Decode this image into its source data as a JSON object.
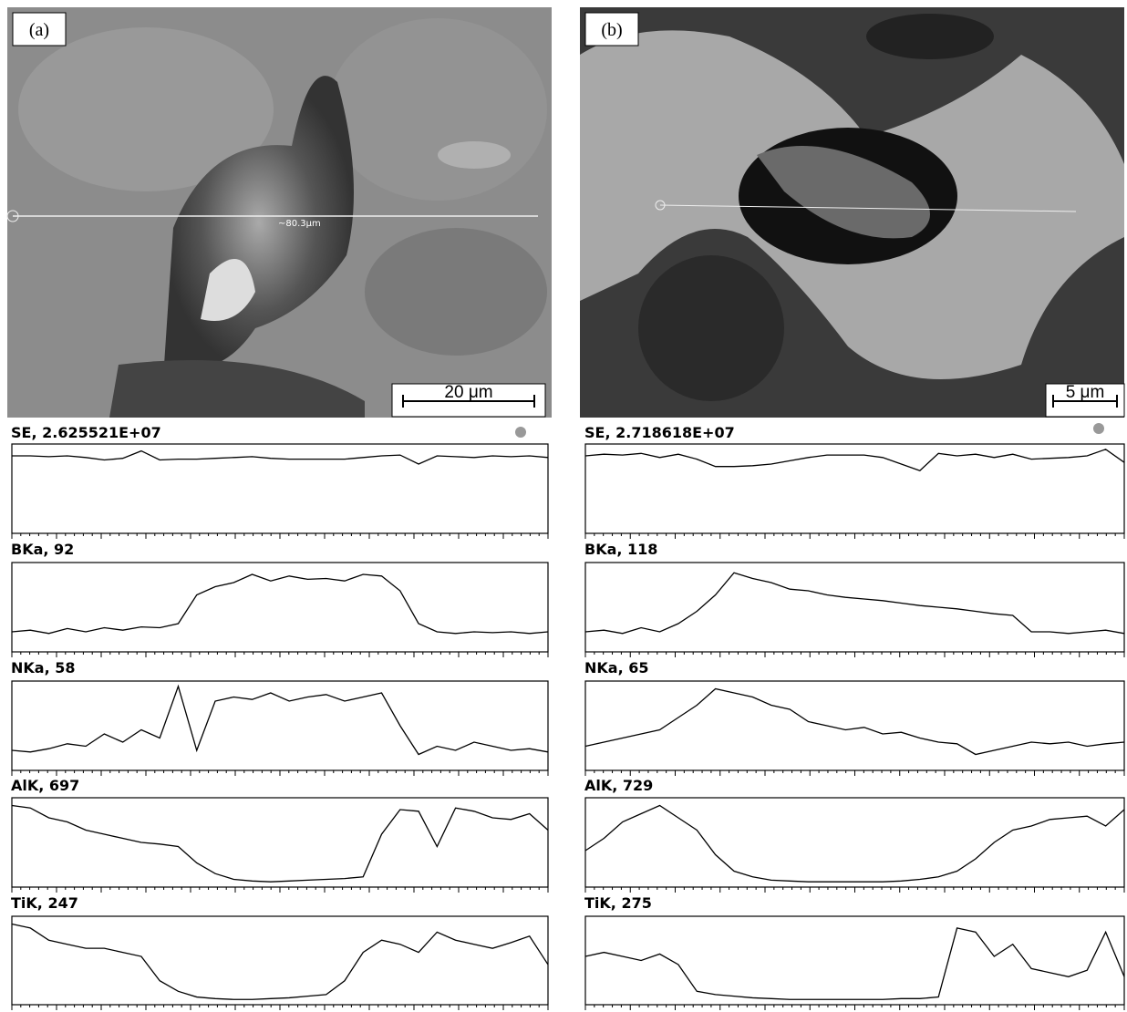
{
  "panels": [
    {
      "label": "(a)",
      "scale_bar": "20 μm",
      "scan_label": "~80.3μm"
    },
    {
      "label": "(b)",
      "scale_bar": "5 μm"
    }
  ],
  "chart_data": [
    {
      "type": "line",
      "title": "SE, 2.625521E+07",
      "color": "#000000",
      "ylim": [
        0,
        100
      ],
      "values": [
        90,
        90,
        89,
        90,
        88,
        85,
        87,
        96,
        85,
        86,
        86,
        87,
        88,
        89,
        87,
        86,
        86,
        86,
        86,
        88,
        90,
        91,
        80,
        90,
        89,
        88,
        90,
        89,
        90,
        88
      ]
    },
    {
      "type": "line",
      "title": "BKa, 92",
      "color": "#000000",
      "ylim": [
        0,
        100
      ],
      "values": [
        20,
        22,
        18,
        24,
        20,
        25,
        22,
        26,
        25,
        30,
        65,
        75,
        80,
        90,
        82,
        88,
        84,
        85,
        82,
        90,
        88,
        70,
        30,
        20,
        18,
        20,
        19,
        20,
        18,
        20
      ]
    },
    {
      "type": "line",
      "title": "NKa, 58",
      "color": "#000000",
      "ylim": [
        0,
        100
      ],
      "values": [
        20,
        18,
        22,
        28,
        25,
        40,
        30,
        45,
        35,
        98,
        20,
        80,
        85,
        82,
        90,
        80,
        85,
        88,
        80,
        85,
        90,
        50,
        15,
        25,
        20,
        30,
        25,
        20,
        22,
        18
      ]
    },
    {
      "type": "line",
      "title": "AlK, 697",
      "color": "#000000",
      "ylim": [
        0,
        100
      ],
      "values": [
        95,
        92,
        80,
        75,
        65,
        60,
        55,
        50,
        48,
        45,
        25,
        12,
        5,
        3,
        2,
        3,
        4,
        5,
        6,
        8,
        60,
        90,
        88,
        45,
        92,
        88,
        80,
        78,
        85,
        65
      ]
    },
    {
      "type": "line",
      "title": "TiK, 247",
      "color": "#000000",
      "ylim": [
        0,
        100
      ],
      "values": [
        95,
        90,
        75,
        70,
        65,
        65,
        60,
        55,
        25,
        12,
        5,
        3,
        2,
        2,
        3,
        4,
        6,
        8,
        25,
        60,
        75,
        70,
        60,
        85,
        75,
        70,
        65,
        72,
        80,
        45
      ]
    },
    {
      "type": "line",
      "title": "SE, 2.718618E+07",
      "color": "#000000",
      "ylim": [
        0,
        100
      ],
      "values": [
        90,
        92,
        91,
        93,
        88,
        92,
        86,
        77,
        77,
        78,
        80,
        84,
        88,
        91,
        91,
        91,
        88,
        80,
        72,
        93,
        90,
        92,
        88,
        92,
        86,
        87,
        88,
        90,
        98,
        82
      ]
    },
    {
      "type": "line",
      "title": "BKa, 118",
      "color": "#000000",
      "ylim": [
        0,
        100
      ],
      "values": [
        20,
        22,
        18,
        25,
        20,
        30,
        45,
        65,
        92,
        85,
        80,
        72,
        70,
        65,
        62,
        60,
        58,
        55,
        52,
        50,
        48,
        45,
        42,
        40,
        20,
        20,
        18,
        20,
        22,
        18
      ]
    },
    {
      "type": "line",
      "title": "NKa, 65",
      "color": "#000000",
      "ylim": [
        0,
        100
      ],
      "values": [
        25,
        30,
        35,
        40,
        45,
        60,
        75,
        95,
        90,
        85,
        75,
        70,
        55,
        50,
        45,
        48,
        40,
        42,
        35,
        30,
        28,
        15,
        20,
        25,
        30,
        28,
        30,
        25,
        28,
        30
      ]
    },
    {
      "type": "line",
      "title": "AlK, 729",
      "color": "#000000",
      "ylim": [
        0,
        100
      ],
      "values": [
        40,
        55,
        75,
        85,
        95,
        80,
        65,
        35,
        15,
        8,
        4,
        3,
        2,
        2,
        2,
        2,
        2,
        3,
        5,
        8,
        15,
        30,
        50,
        65,
        70,
        78,
        80,
        82,
        70,
        90
      ]
    },
    {
      "type": "line",
      "title": "TiK, 275",
      "color": "#000000",
      "ylim": [
        0,
        100
      ],
      "values": [
        55,
        60,
        55,
        50,
        58,
        45,
        12,
        8,
        6,
        4,
        3,
        2,
        2,
        2,
        2,
        2,
        2,
        3,
        3,
        5,
        90,
        85,
        55,
        70,
        40,
        35,
        30,
        38,
        85,
        30
      ]
    }
  ]
}
